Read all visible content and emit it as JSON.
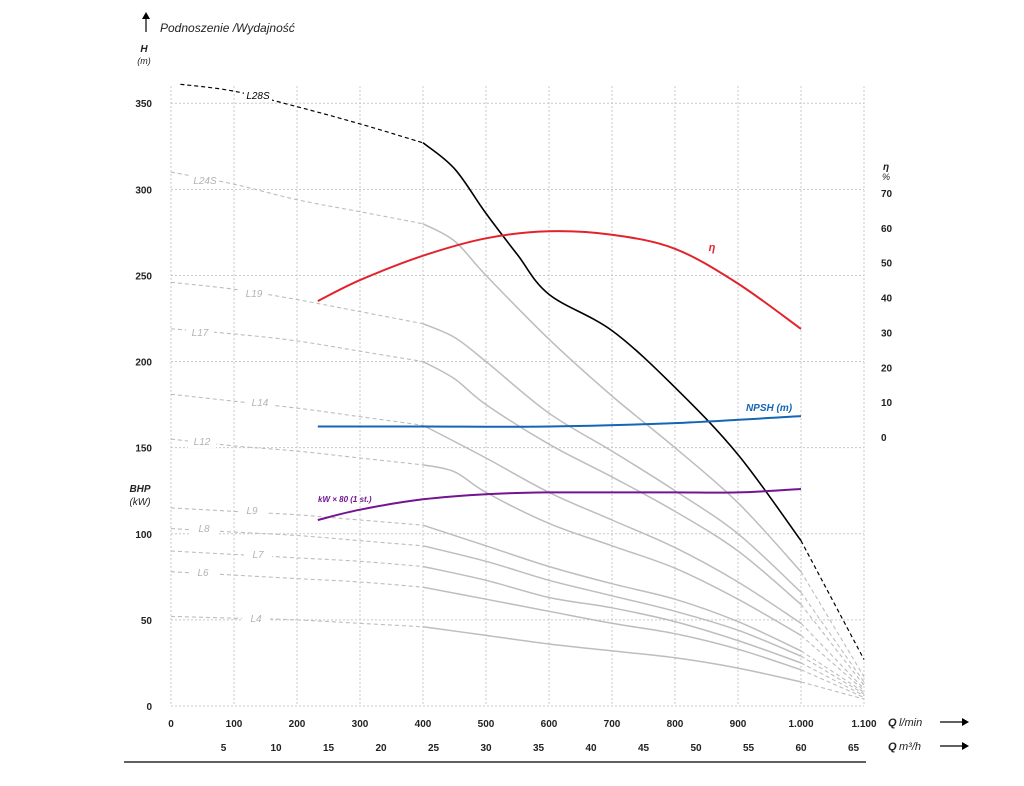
{
  "chart_data": {
    "type": "line",
    "title": "Podnoszenie /Wydajność",
    "y_label": "H",
    "y_unit": "(m)",
    "y2_label": "η",
    "y2_unit": "%",
    "bhp_label": "BHP",
    "bhp_unit": "(kW)",
    "x_label_q": "Q",
    "x_unit_lmin": "l/min",
    "x_unit_m3h": "m³/h",
    "ylim": [
      0,
      360
    ],
    "xlim": [
      0,
      1100
    ],
    "grid": true,
    "y_ticks": [
      "0",
      "50",
      "100",
      "150",
      "200",
      "250",
      "300",
      "350"
    ],
    "y2_ticks": [
      "0",
      "10",
      "20",
      "30",
      "40",
      "50",
      "60",
      "70"
    ],
    "x_ticks_lmin": [
      "0",
      "100",
      "200",
      "300",
      "400",
      "500",
      "600",
      "700",
      "800",
      "900",
      "1.000",
      "1.100"
    ],
    "x_ticks_m3h": [
      "5",
      "10",
      "15",
      "20",
      "25",
      "30",
      "35",
      "40",
      "45",
      "50",
      "55",
      "60",
      "65"
    ],
    "curve_colors": {
      "pump": "#000000",
      "model": "#bdbdbd",
      "efficiency": "#e3232c",
      "npsh": "#1565b5",
      "power": "#74148f"
    },
    "series": [
      {
        "name": "L28S",
        "kind": "pump",
        "dashed_to": 400,
        "solid_to": 1000,
        "points": [
          [
            15,
            361
          ],
          [
            100,
            357
          ],
          [
            200,
            348
          ],
          [
            300,
            338
          ],
          [
            400,
            327
          ],
          [
            450,
            312
          ],
          [
            500,
            286
          ],
          [
            550,
            262
          ],
          [
            600,
            239
          ],
          [
            700,
            218
          ],
          [
            800,
            185
          ],
          [
            900,
            146
          ],
          [
            1000,
            96
          ],
          [
            1100,
            27
          ]
        ]
      },
      {
        "name": "L24S",
        "kind": "model",
        "dashed_to": 400,
        "solid_to": 1000,
        "points": [
          [
            0,
            310
          ],
          [
            100,
            303
          ],
          [
            200,
            294
          ],
          [
            300,
            287
          ],
          [
            400,
            280
          ],
          [
            450,
            270
          ],
          [
            500,
            250
          ],
          [
            600,
            213
          ],
          [
            700,
            180
          ],
          [
            800,
            150
          ],
          [
            900,
            118
          ],
          [
            1000,
            78
          ],
          [
            1100,
            17
          ]
        ]
      },
      {
        "name": "L19",
        "kind": "model",
        "dashed_to": 400,
        "solid_to": 1000,
        "points": [
          [
            0,
            246
          ],
          [
            100,
            242
          ],
          [
            200,
            236
          ],
          [
            300,
            229
          ],
          [
            400,
            222
          ],
          [
            450,
            214
          ],
          [
            500,
            200
          ],
          [
            600,
            170
          ],
          [
            700,
            148
          ],
          [
            800,
            125
          ],
          [
            900,
            100
          ],
          [
            1000,
            66
          ],
          [
            1100,
            14
          ]
        ]
      },
      {
        "name": "L17",
        "kind": "model",
        "dashed_to": 400,
        "solid_to": 1000,
        "points": [
          [
            0,
            219
          ],
          [
            100,
            216
          ],
          [
            200,
            212
          ],
          [
            300,
            206
          ],
          [
            400,
            200
          ],
          [
            450,
            190
          ],
          [
            500,
            175
          ],
          [
            600,
            152
          ],
          [
            700,
            133
          ],
          [
            800,
            113
          ],
          [
            900,
            90
          ],
          [
            1000,
            59
          ],
          [
            1100,
            12
          ]
        ]
      },
      {
        "name": "L14",
        "kind": "model",
        "dashed_to": 400,
        "solid_to": 1000,
        "points": [
          [
            0,
            181
          ],
          [
            100,
            177
          ],
          [
            200,
            173
          ],
          [
            300,
            168
          ],
          [
            400,
            163
          ],
          [
            500,
            144
          ],
          [
            600,
            124
          ],
          [
            700,
            108
          ],
          [
            800,
            92
          ],
          [
            900,
            72
          ],
          [
            1000,
            48
          ],
          [
            1100,
            10
          ]
        ]
      },
      {
        "name": "L12",
        "kind": "model",
        "dashed_to": 400,
        "solid_to": 1000,
        "points": [
          [
            0,
            155
          ],
          [
            100,
            151
          ],
          [
            200,
            148
          ],
          [
            300,
            144
          ],
          [
            400,
            140
          ],
          [
            450,
            136
          ],
          [
            500,
            124
          ],
          [
            600,
            106
          ],
          [
            700,
            93
          ],
          [
            800,
            80
          ],
          [
            900,
            62
          ],
          [
            1000,
            41
          ],
          [
            1100,
            9
          ]
        ]
      },
      {
        "name": "L9",
        "kind": "model",
        "dashed_to": 400,
        "solid_to": 1000,
        "points": [
          [
            0,
            115
          ],
          [
            100,
            113
          ],
          [
            200,
            111
          ],
          [
            300,
            108
          ],
          [
            400,
            105
          ],
          [
            500,
            93
          ],
          [
            600,
            81
          ],
          [
            700,
            71
          ],
          [
            800,
            62
          ],
          [
            900,
            49
          ],
          [
            1000,
            32
          ],
          [
            1100,
            8
          ]
        ]
      },
      {
        "name": "L8",
        "kind": "model",
        "dashed_to": 400,
        "solid_to": 1000,
        "points": [
          [
            0,
            103
          ],
          [
            100,
            101
          ],
          [
            200,
            99
          ],
          [
            300,
            96
          ],
          [
            400,
            93
          ],
          [
            500,
            84
          ],
          [
            600,
            73
          ],
          [
            700,
            64
          ],
          [
            800,
            55
          ],
          [
            900,
            44
          ],
          [
            1000,
            29
          ],
          [
            1100,
            7
          ]
        ]
      },
      {
        "name": "L7",
        "kind": "model",
        "dashed_to": 400,
        "solid_to": 1000,
        "points": [
          [
            0,
            90
          ],
          [
            100,
            88
          ],
          [
            200,
            86
          ],
          [
            300,
            84
          ],
          [
            400,
            81
          ],
          [
            500,
            73
          ],
          [
            600,
            63
          ],
          [
            700,
            57
          ],
          [
            800,
            49
          ],
          [
            900,
            38
          ],
          [
            1000,
            25
          ],
          [
            1100,
            6
          ]
        ]
      },
      {
        "name": "L6",
        "kind": "model",
        "dashed_to": 400,
        "solid_to": 1000,
        "points": [
          [
            0,
            78
          ],
          [
            100,
            76
          ],
          [
            200,
            74
          ],
          [
            300,
            72
          ],
          [
            400,
            69
          ],
          [
            500,
            62
          ],
          [
            600,
            55
          ],
          [
            700,
            48
          ],
          [
            800,
            42
          ],
          [
            900,
            33
          ],
          [
            1000,
            21
          ],
          [
            1100,
            5
          ]
        ]
      },
      {
        "name": "L4",
        "kind": "model",
        "dashed_to": 400,
        "solid_to": 1000,
        "points": [
          [
            0,
            52
          ],
          [
            100,
            51
          ],
          [
            200,
            50
          ],
          [
            300,
            48
          ],
          [
            400,
            46
          ],
          [
            500,
            41
          ],
          [
            600,
            36
          ],
          [
            700,
            32
          ],
          [
            800,
            28
          ],
          [
            900,
            22
          ],
          [
            1000,
            14
          ],
          [
            1100,
            4
          ]
        ]
      },
      {
        "name": "η",
        "kind": "efficiency",
        "axis": "eta_percent",
        "points": [
          [
            233,
            39
          ],
          [
            300,
            45
          ],
          [
            400,
            52
          ],
          [
            500,
            57
          ],
          [
            600,
            59
          ],
          [
            700,
            58
          ],
          [
            800,
            54
          ],
          [
            900,
            44
          ],
          [
            1000,
            31
          ]
        ]
      },
      {
        "name": "NPSH (m)",
        "kind": "npsh",
        "axis": "eta_percent",
        "points": [
          [
            233,
            3
          ],
          [
            400,
            3
          ],
          [
            600,
            3
          ],
          [
            800,
            4
          ],
          [
            1000,
            6
          ]
        ]
      },
      {
        "name": "kW × 80 (1 st.)",
        "kind": "power",
        "axis": "H",
        "points": [
          [
            233,
            108
          ],
          [
            300,
            114
          ],
          [
            400,
            120
          ],
          [
            500,
            123
          ],
          [
            600,
            124
          ],
          [
            700,
            124
          ],
          [
            800,
            124
          ],
          [
            900,
            124
          ],
          [
            1000,
            126
          ]
        ]
      }
    ]
  }
}
